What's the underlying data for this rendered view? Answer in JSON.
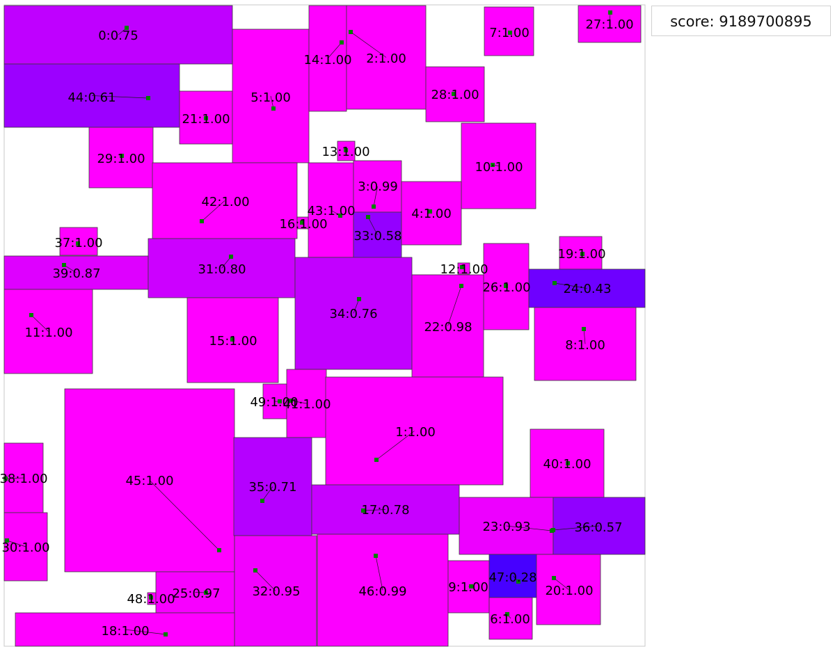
{
  "score": "score: 9189700895",
  "colors": {
    "full": "#ff00ff",
    "low": "#0000ff",
    "border": "#3a3a3a",
    "point": "#008000",
    "text": "#000000",
    "frame": "#c8c8c8"
  },
  "rects": [
    {
      "label": "0:0.75",
      "score": 0.75
    },
    {
      "label": "44:0.61",
      "score": 0.61
    },
    {
      "label": "21:1.00",
      "score": 1.0
    },
    {
      "label": "5:1.00",
      "score": 1.0
    },
    {
      "label": "14:1.00",
      "score": 1.0
    },
    {
      "label": "2:1.00",
      "score": 1.0
    },
    {
      "label": "7:1.00",
      "score": 1.0
    },
    {
      "label": "27:1.00",
      "score": 1.0
    },
    {
      "label": "28:1.00",
      "score": 1.0
    },
    {
      "label": "29:1.00",
      "score": 1.0
    },
    {
      "label": "13:1.00",
      "score": 1.0
    },
    {
      "label": "10:1.00",
      "score": 1.0
    },
    {
      "label": "42:1.00",
      "score": 1.0
    },
    {
      "label": "43:1.00",
      "score": 1.0
    },
    {
      "label": "3:0.99",
      "score": 0.99
    },
    {
      "label": "16:1.00",
      "score": 1.0
    },
    {
      "label": "33:0.58",
      "score": 0.58
    },
    {
      "label": "4:1.00",
      "score": 1.0
    },
    {
      "label": "37:1.00",
      "score": 1.0
    },
    {
      "label": "39:0.87",
      "score": 0.87
    },
    {
      "label": "31:0.80",
      "score": 0.8
    },
    {
      "label": "19:1.00",
      "score": 1.0
    },
    {
      "label": "12:1.00",
      "score": 1.0
    },
    {
      "label": "26:1.00",
      "score": 1.0
    },
    {
      "label": "24:0.43",
      "score": 0.43
    },
    {
      "label": "34:0.76",
      "score": 0.76
    },
    {
      "label": "22:0.98",
      "score": 0.98
    },
    {
      "label": "11:1.00",
      "score": 1.0
    },
    {
      "label": "15:1.00",
      "score": 1.0
    },
    {
      "label": "8:1.00",
      "score": 1.0
    },
    {
      "label": "49:1.00",
      "score": 1.0
    },
    {
      "label": "41:1.00",
      "score": 1.0
    },
    {
      "label": "1:1.00",
      "score": 1.0
    },
    {
      "label": "38:1.00",
      "score": 1.0
    },
    {
      "label": "45:1.00",
      "score": 1.0
    },
    {
      "label": "35:0.71",
      "score": 0.71
    },
    {
      "label": "40:1.00",
      "score": 1.0
    },
    {
      "label": "17:0.78",
      "score": 0.78
    },
    {
      "label": "23:0.93",
      "score": 0.93
    },
    {
      "label": "36:0.57",
      "score": 0.57
    },
    {
      "label": "30:1.00",
      "score": 1.0
    },
    {
      "label": "48:1.00",
      "score": 1.0
    },
    {
      "label": "25:0.97",
      "score": 0.97
    },
    {
      "label": "32:0.95",
      "score": 0.95
    },
    {
      "label": "46:0.99",
      "score": 0.99
    },
    {
      "label": "9:1.00",
      "score": 1.0
    },
    {
      "label": "47:0.28",
      "score": 0.28
    },
    {
      "label": "20:1.00",
      "score": 1.0
    },
    {
      "label": "6:1.00",
      "score": 1.0
    },
    {
      "label": "18:1.00",
      "score": 1.0
    }
  ]
}
